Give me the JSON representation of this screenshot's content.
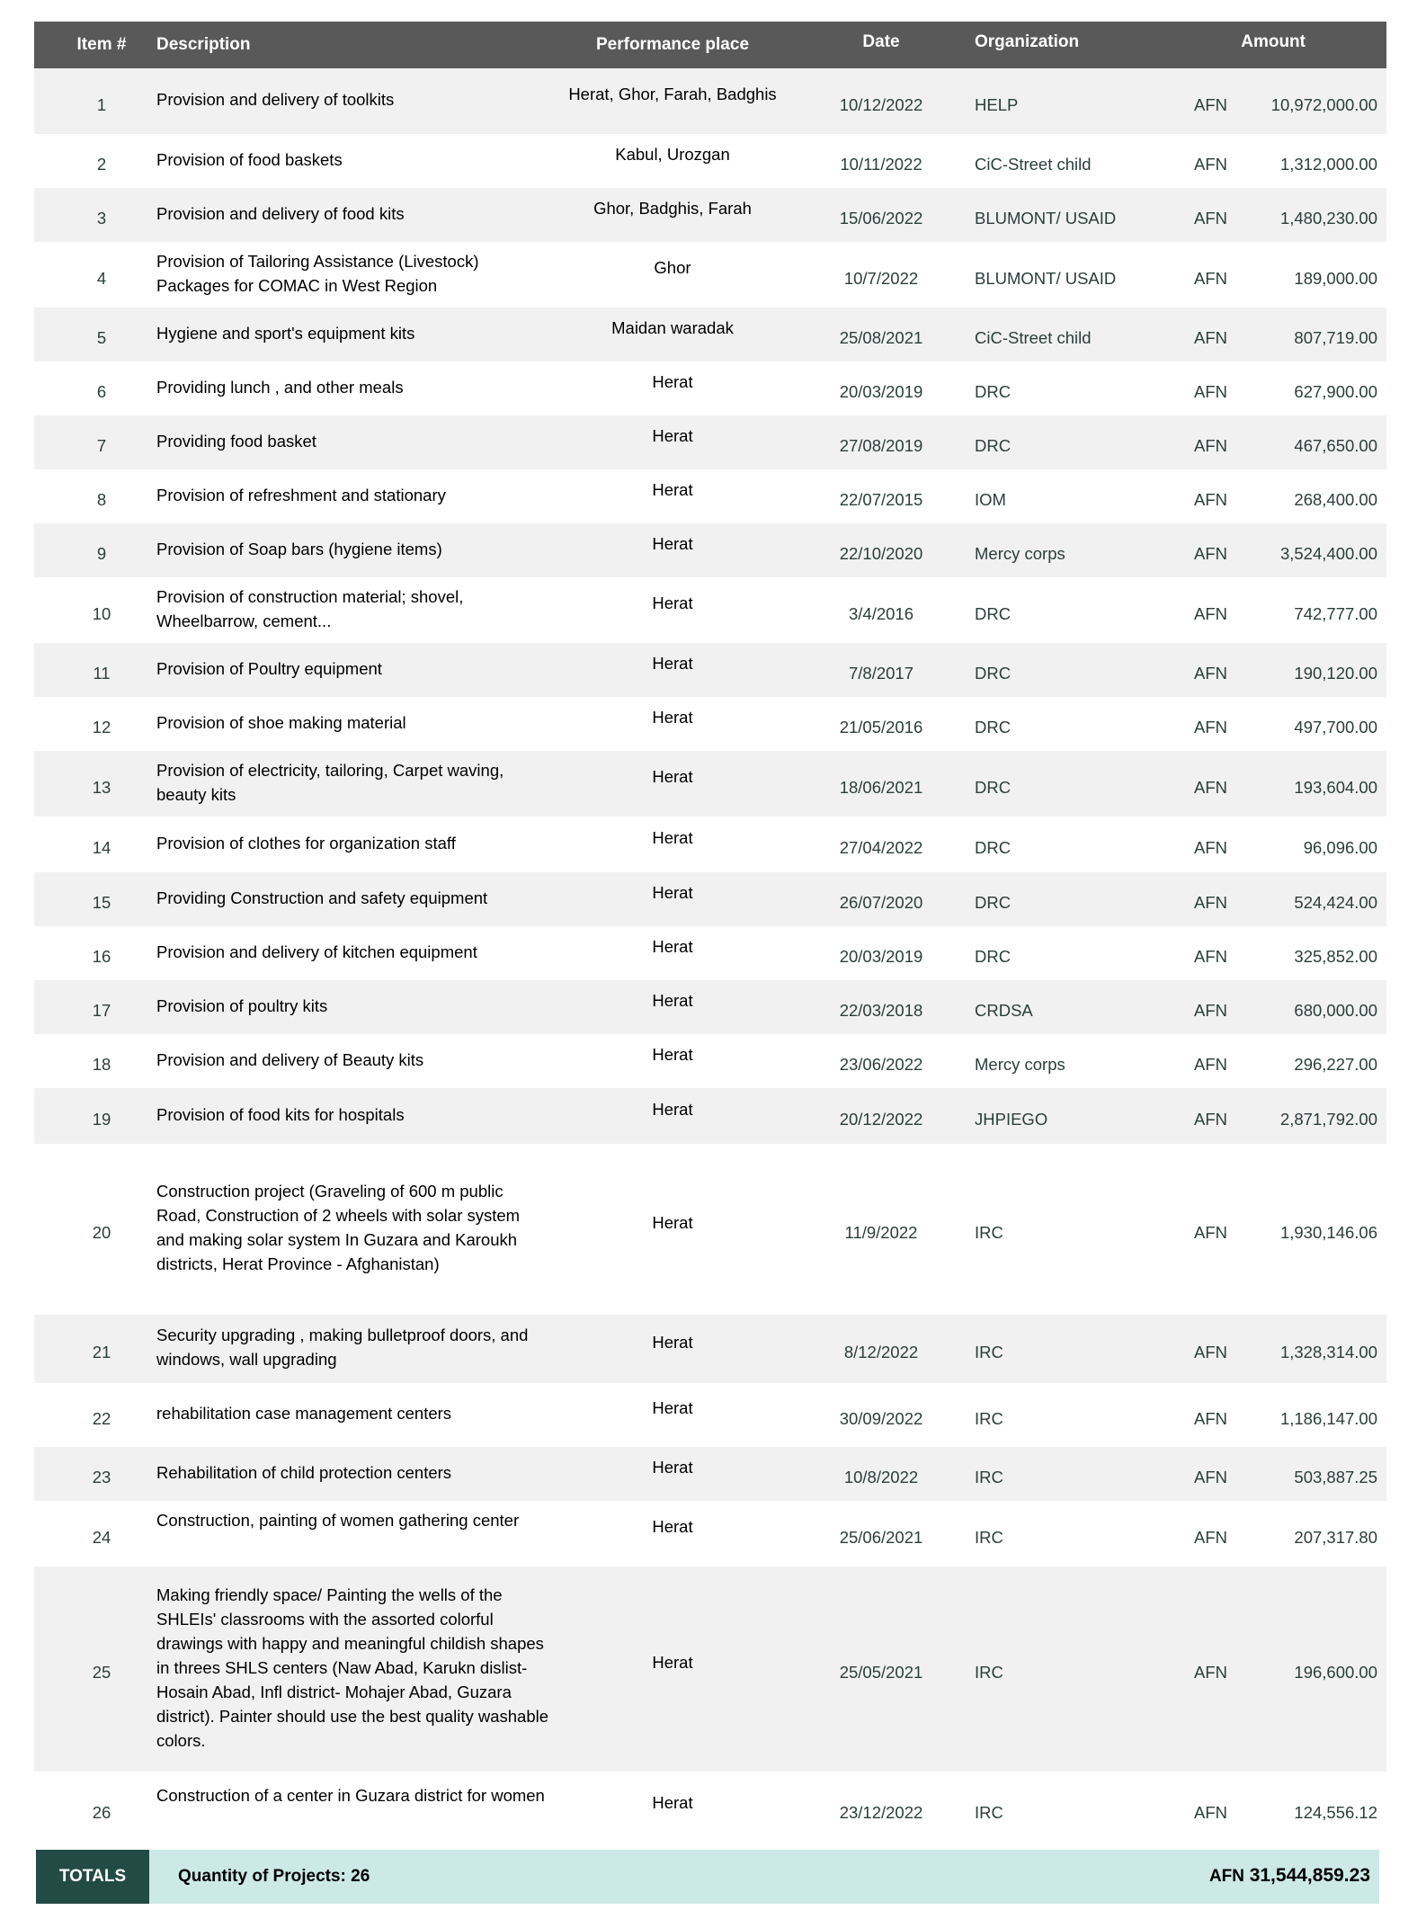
{
  "header": {
    "item": "Item #",
    "description": "Description",
    "place": "Performance place",
    "date": "Date",
    "organization": "Organization",
    "amount": "Amount"
  },
  "rows": [
    {
      "item": "1",
      "description": "Provision and delivery of toolkits",
      "place": "Herat, Ghor, Farah, Badghis",
      "date": "10/12/2022",
      "org": "HELP",
      "currency": "AFN",
      "amount": "10,972,000.00"
    },
    {
      "item": "2",
      "description": "Provision of food baskets",
      "place": "Kabul, Urozgan",
      "date": "10/11/2022",
      "org": "CiC-Street child",
      "currency": "AFN",
      "amount": "1,312,000.00"
    },
    {
      "item": "3",
      "description": "Provision and delivery of food kits",
      "place": "Ghor, Badghis, Farah",
      "date": "15/06/2022",
      "org": "BLUMONT/ USAID",
      "currency": "AFN",
      "amount": "1,480,230.00"
    },
    {
      "item": "4",
      "description": "Provision of Tailoring Assistance (Livestock) Packages for COMAC in West Region",
      "place": "Ghor",
      "date": "10/7/2022",
      "org": "BLUMONT/ USAID",
      "currency": "AFN",
      "amount": "189,000.00"
    },
    {
      "item": "5",
      "description": "Hygiene and sport's equipment kits",
      "place": "Maidan waradak",
      "date": "25/08/2021",
      "org": "CiC-Street child",
      "currency": "AFN",
      "amount": "807,719.00"
    },
    {
      "item": "6",
      "description": "Providing lunch , and other meals",
      "place": "Herat",
      "date": "20/03/2019",
      "org": "DRC",
      "currency": "AFN",
      "amount": "627,900.00"
    },
    {
      "item": "7",
      "description": "Providing food basket",
      "place": "Herat",
      "date": "27/08/2019",
      "org": "DRC",
      "currency": "AFN",
      "amount": "467,650.00"
    },
    {
      "item": "8",
      "description": "Provision of refreshment and stationary",
      "place": "Herat",
      "date": "22/07/2015",
      "org": "IOM",
      "currency": "AFN",
      "amount": "268,400.00"
    },
    {
      "item": "9",
      "description": "Provision of Soap bars (hygiene items)",
      "place": "Herat",
      "date": "22/10/2020",
      "org": "Mercy corps",
      "currency": "AFN",
      "amount": "3,524,400.00"
    },
    {
      "item": "10",
      "description": "Provision of construction material; shovel, Wheelbarrow, cement...",
      "place": "Herat",
      "date": "3/4/2016",
      "org": "DRC",
      "currency": "AFN",
      "amount": "742,777.00"
    },
    {
      "item": "11",
      "description": "Provision of Poultry equipment",
      "place": "Herat",
      "date": "7/8/2017",
      "org": "DRC",
      "currency": "AFN",
      "amount": "190,120.00"
    },
    {
      "item": "12",
      "description": "Provision of shoe making material",
      "place": "Herat",
      "date": "21/05/2016",
      "org": "DRC",
      "currency": "AFN",
      "amount": "497,700.00"
    },
    {
      "item": "13",
      "description": "Provision of electricity, tailoring, Carpet waving, beauty kits",
      "place": "Herat",
      "date": "18/06/2021",
      "org": "DRC",
      "currency": "AFN",
      "amount": "193,604.00"
    },
    {
      "item": "14",
      "description": "Provision of clothes for organization staff",
      "place": "Herat",
      "date": "27/04/2022",
      "org": "DRC",
      "currency": "AFN",
      "amount": "96,096.00"
    },
    {
      "item": "15",
      "description": "Providing Construction and safety equipment",
      "place": "Herat",
      "date": "26/07/2020",
      "org": "DRC",
      "currency": "AFN",
      "amount": "524,424.00"
    },
    {
      "item": "16",
      "description": "Provision and delivery of kitchen equipment",
      "place": "Herat",
      "date": "20/03/2019",
      "org": "DRC",
      "currency": "AFN",
      "amount": "325,852.00"
    },
    {
      "item": "17",
      "description": "Provision of poultry kits",
      "place": "Herat",
      "date": "22/03/2018",
      "org": "CRDSA",
      "currency": "AFN",
      "amount": "680,000.00"
    },
    {
      "item": "18",
      "description": "Provision and delivery of Beauty kits",
      "place": "Herat",
      "date": "23/06/2022",
      "org": "Mercy corps",
      "currency": "AFN",
      "amount": "296,227.00"
    },
    {
      "item": "19",
      "description": "Provision of food kits for hospitals",
      "place": "Herat",
      "date": "20/12/2022",
      "org": "JHPIEGO",
      "currency": "AFN",
      "amount": "2,871,792.00"
    },
    {
      "item": "20",
      "description": "Construction project (Graveling of 600 m public Road, Construction of 2 wheels with solar system and making solar system In Guzara and Karoukh districts, Herat Province - Afghanistan)",
      "place": "Herat",
      "date": "11/9/2022",
      "org": "IRC",
      "currency": "AFN",
      "amount": "1,930,146.06"
    },
    {
      "item": "21",
      "description": "Security upgrading , making bulletproof doors, and windows, wall upgrading",
      "place": "Herat",
      "date": "8/12/2022",
      "org": "IRC",
      "currency": "AFN",
      "amount": "1,328,314.00"
    },
    {
      "item": "22",
      "description": "rehabilitation case management centers",
      "place": "Herat",
      "date": "30/09/2022",
      "org": "IRC",
      "currency": "AFN",
      "amount": "1,186,147.00"
    },
    {
      "item": "23",
      "description": "Rehabilitation of child protection  centers",
      "place": "Herat",
      "date": "10/8/2022",
      "org": "IRC",
      "currency": "AFN",
      "amount": "503,887.25"
    },
    {
      "item": "24",
      "description": "Construction, painting of women gathering center",
      "place": "Herat",
      "date": "25/06/2021",
      "org": "IRC",
      "currency": "AFN",
      "amount": "207,317.80"
    },
    {
      "item": "25",
      "description": "Making friendly space/ Painting the wells of the SHLEIs' classrooms with the assorted colorful drawings with happy and meaningful childish shapes in threes SHLS centers (Naw Abad, Karukn dislist- Hosain Abad, Infl district- Mohajer Abad, Guzara district). Painter should use the best quality washable colors.",
      "place": "Herat",
      "date": "25/05/2021",
      "org": "IRC",
      "currency": "AFN",
      "amount": "196,600.00"
    },
    {
      "item": "26",
      "description": "Construction of a center in Guzara district for women",
      "place": "Herat",
      "date": "23/12/2022",
      "org": "IRC",
      "currency": "AFN",
      "amount": "124,556.12"
    }
  ],
  "totals": {
    "label": "TOTALS",
    "quantity": "Quantity of Projects: 26",
    "currency": "AFN",
    "amount": "31,544,859.23"
  },
  "colors": {
    "header_bg": "#595959",
    "totals_label_bg": "#234b45",
    "totals_bg": "#cce9e5",
    "row_shade": "#f1f1f1"
  }
}
